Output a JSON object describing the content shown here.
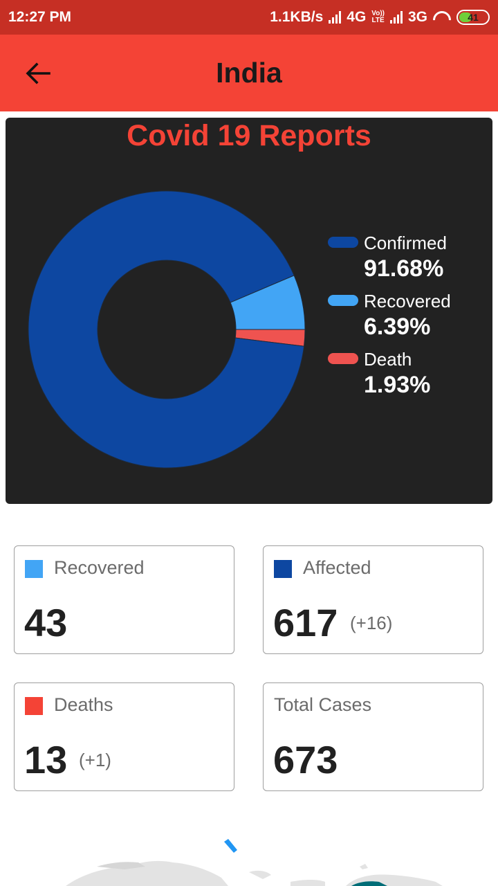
{
  "status_bar": {
    "time": "12:27 PM",
    "net_speed": "1.1KB/s",
    "net1": "4G",
    "volte_top": "Vo))",
    "volte_bottom": "LTE",
    "net2": "3G",
    "battery": "41"
  },
  "app_bar": {
    "back_icon": "arrow-left-icon",
    "title": "India"
  },
  "chart": {
    "title": "Covid 19 Reports"
  },
  "chart_data": {
    "type": "pie",
    "title": "Covid 19 Reports",
    "categories": [
      "Confirmed",
      "Recovered",
      "Death"
    ],
    "values": [
      91.68,
      6.39,
      1.93
    ],
    "labels": [
      "91.68%",
      "6.39%",
      "1.93%"
    ],
    "colors": [
      "#0d47a1",
      "#42a5f5",
      "#ef5350"
    ],
    "donut": true,
    "legend": "right"
  },
  "stats": {
    "recovered": {
      "label": "Recovered",
      "value": "43",
      "color": "#42a5f5"
    },
    "affected": {
      "label": "Affected",
      "value": "617",
      "delta": "(+16)",
      "color": "#0d47a1"
    },
    "deaths": {
      "label": "Deaths",
      "value": "13",
      "delta": "(+1)",
      "color": "#f44336"
    },
    "total": {
      "label": "Total Cases",
      "value": "673"
    }
  }
}
